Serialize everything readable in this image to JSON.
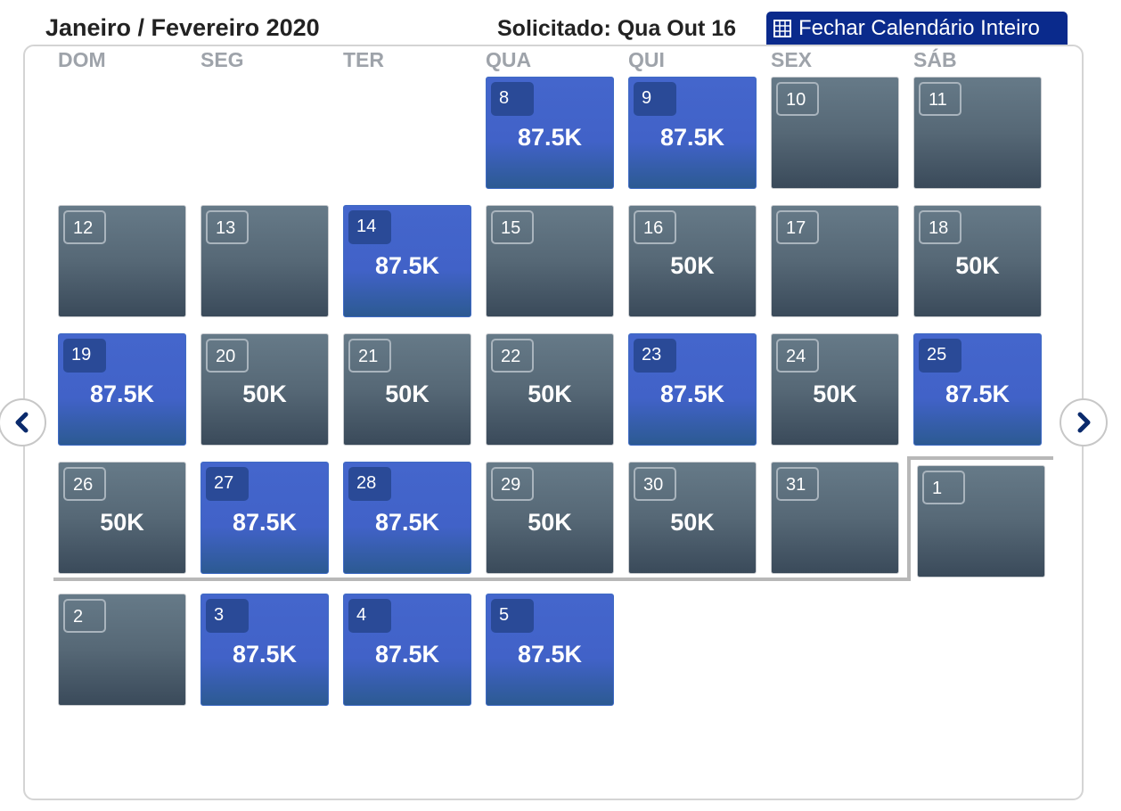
{
  "header": {
    "title": "Janeiro / Fevereiro 2020",
    "requested": "Solicitado: Qua Out 16",
    "close_label": "Fechar Calendário Inteiro"
  },
  "weekdays": [
    "DOM",
    "SEG",
    "TER",
    "QUA",
    "QUI",
    "SEX",
    "SÁB"
  ],
  "colors": {
    "available": "#4466cc",
    "unavailable": "#566876",
    "button": "#0a2a8c"
  },
  "icons": {
    "close": "grid-icon",
    "prev": "chevron-left-icon",
    "next": "chevron-right-icon"
  },
  "weeks": [
    [
      null,
      null,
      null,
      {
        "day": "8",
        "price": "87.5K",
        "style": "blue"
      },
      {
        "day": "9",
        "price": "87.5K",
        "style": "blue"
      },
      {
        "day": "10",
        "price": "",
        "style": "gray"
      },
      {
        "day": "11",
        "price": "",
        "style": "gray"
      }
    ],
    [
      {
        "day": "12",
        "price": "",
        "style": "gray"
      },
      {
        "day": "13",
        "price": "",
        "style": "gray"
      },
      {
        "day": "14",
        "price": "87.5K",
        "style": "blue"
      },
      {
        "day": "15",
        "price": "",
        "style": "gray"
      },
      {
        "day": "16",
        "price": "50K",
        "style": "gray"
      },
      {
        "day": "17",
        "price": "",
        "style": "gray"
      },
      {
        "day": "18",
        "price": "50K",
        "style": "gray"
      }
    ],
    [
      {
        "day": "19",
        "price": "87.5K",
        "style": "blue"
      },
      {
        "day": "20",
        "price": "50K",
        "style": "gray"
      },
      {
        "day": "21",
        "price": "50K",
        "style": "gray"
      },
      {
        "day": "22",
        "price": "50K",
        "style": "gray"
      },
      {
        "day": "23",
        "price": "87.5K",
        "style": "blue"
      },
      {
        "day": "24",
        "price": "50K",
        "style": "gray"
      },
      {
        "day": "25",
        "price": "87.5K",
        "style": "blue"
      }
    ],
    [
      {
        "day": "26",
        "price": "50K",
        "style": "gray"
      },
      {
        "day": "27",
        "price": "87.5K",
        "style": "blue"
      },
      {
        "day": "28",
        "price": "87.5K",
        "style": "blue"
      },
      {
        "day": "29",
        "price": "50K",
        "style": "gray"
      },
      {
        "day": "30",
        "price": "50K",
        "style": "gray"
      },
      {
        "day": "31",
        "price": "",
        "style": "gray"
      },
      {
        "day": "1",
        "price": "",
        "style": "gray",
        "next_month": true
      }
    ],
    [
      {
        "day": "2",
        "price": "",
        "style": "gray"
      },
      {
        "day": "3",
        "price": "87.5K",
        "style": "blue"
      },
      {
        "day": "4",
        "price": "87.5K",
        "style": "blue"
      },
      {
        "day": "5",
        "price": "87.5K",
        "style": "blue"
      },
      null,
      null,
      null
    ]
  ]
}
